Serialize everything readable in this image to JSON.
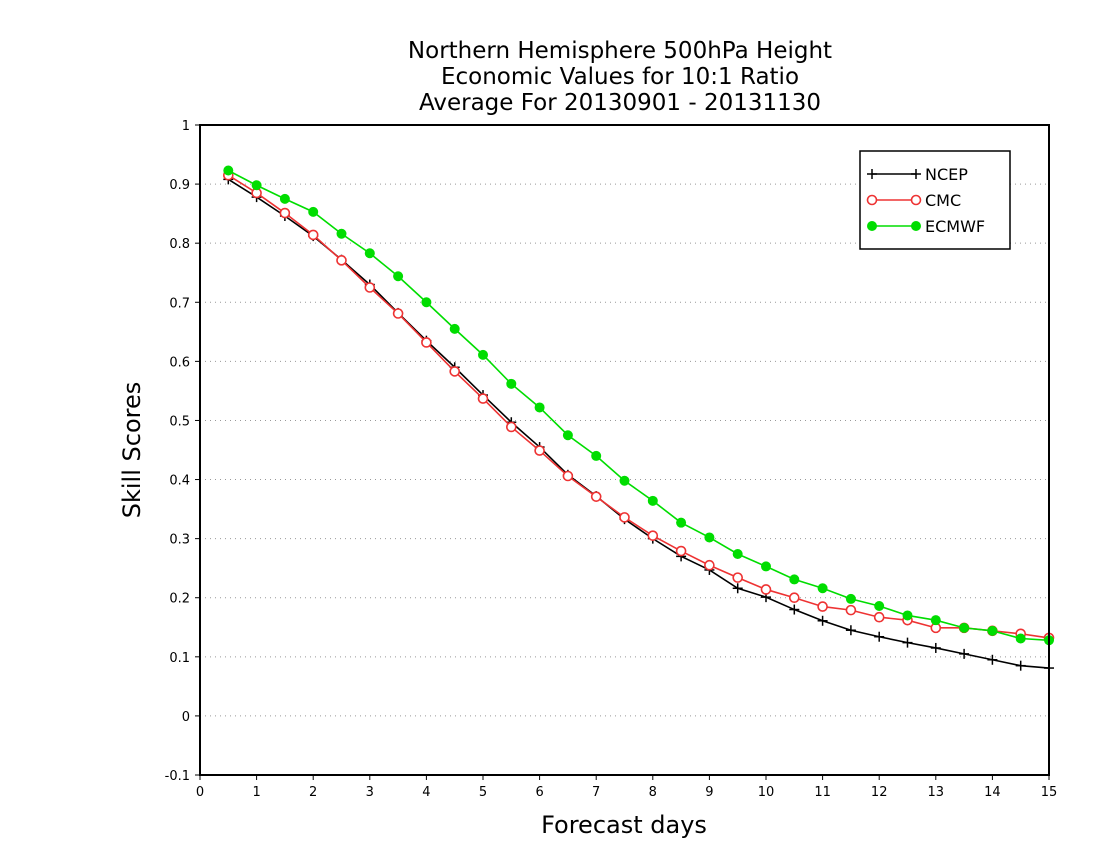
{
  "chart_data": {
    "type": "line",
    "title_lines": [
      "Northern Hemisphere 500hPa Height",
      "Economic Values for 10:1 Ratio",
      "Average For 20130901 - 20131130"
    ],
    "xlabel": "Forecast days",
    "ylabel": "Skill Scores",
    "xlim": [
      0,
      15
    ],
    "ylim": [
      -0.1,
      1
    ],
    "x_ticks": [
      "0",
      "1",
      "2",
      "3",
      "4",
      "5",
      "6",
      "7",
      "8",
      "9",
      "10",
      "11",
      "12",
      "13",
      "14",
      "15"
    ],
    "y_ticks": [
      "-0.1",
      "0",
      "0.1",
      "0.2",
      "0.3",
      "0.4",
      "0.5",
      "0.6",
      "0.7",
      "0.8",
      "0.9",
      "1"
    ],
    "grid": "horizontal dotted",
    "legend_position": "top-right",
    "x": [
      0.5,
      1,
      1.5,
      2,
      2.5,
      3,
      3.5,
      4,
      4.5,
      5,
      5.5,
      6,
      6.5,
      7,
      7.5,
      8,
      8.5,
      9,
      9.5,
      10,
      10.5,
      11,
      11.5,
      12,
      12.5,
      13,
      13.5,
      14,
      14.5,
      15
    ],
    "series": [
      {
        "name": "NCEP",
        "color": "#000000",
        "marker": "plus",
        "values": [
          0.908,
          0.878,
          0.846,
          0.812,
          0.772,
          0.73,
          0.682,
          0.635,
          0.59,
          0.543,
          0.497,
          0.455,
          0.408,
          0.372,
          0.333,
          0.3,
          0.27,
          0.247,
          0.216,
          0.201,
          0.18,
          0.161,
          0.145,
          0.134,
          0.124,
          0.115,
          0.105,
          0.095,
          0.085,
          0.081
        ]
      },
      {
        "name": "CMC",
        "color": "#ee3333",
        "marker": "open-circle",
        "values": [
          0.915,
          0.885,
          0.851,
          0.814,
          0.771,
          0.725,
          0.681,
          0.632,
          0.583,
          0.537,
          0.489,
          0.449,
          0.406,
          0.371,
          0.336,
          0.305,
          0.279,
          0.255,
          0.234,
          0.214,
          0.2,
          0.185,
          0.179,
          0.167,
          0.162,
          0.149,
          0.149,
          0.144,
          0.139,
          0.132
        ]
      },
      {
        "name": "ECMWF",
        "color": "#00dd00",
        "marker": "filled-circle",
        "values": [
          0.923,
          0.898,
          0.875,
          0.853,
          0.816,
          0.783,
          0.744,
          0.7,
          0.655,
          0.611,
          0.562,
          0.522,
          0.475,
          0.44,
          0.398,
          0.364,
          0.327,
          0.302,
          0.274,
          0.253,
          0.231,
          0.216,
          0.198,
          0.186,
          0.17,
          0.162,
          0.149,
          0.144,
          0.131,
          0.128
        ]
      }
    ]
  }
}
